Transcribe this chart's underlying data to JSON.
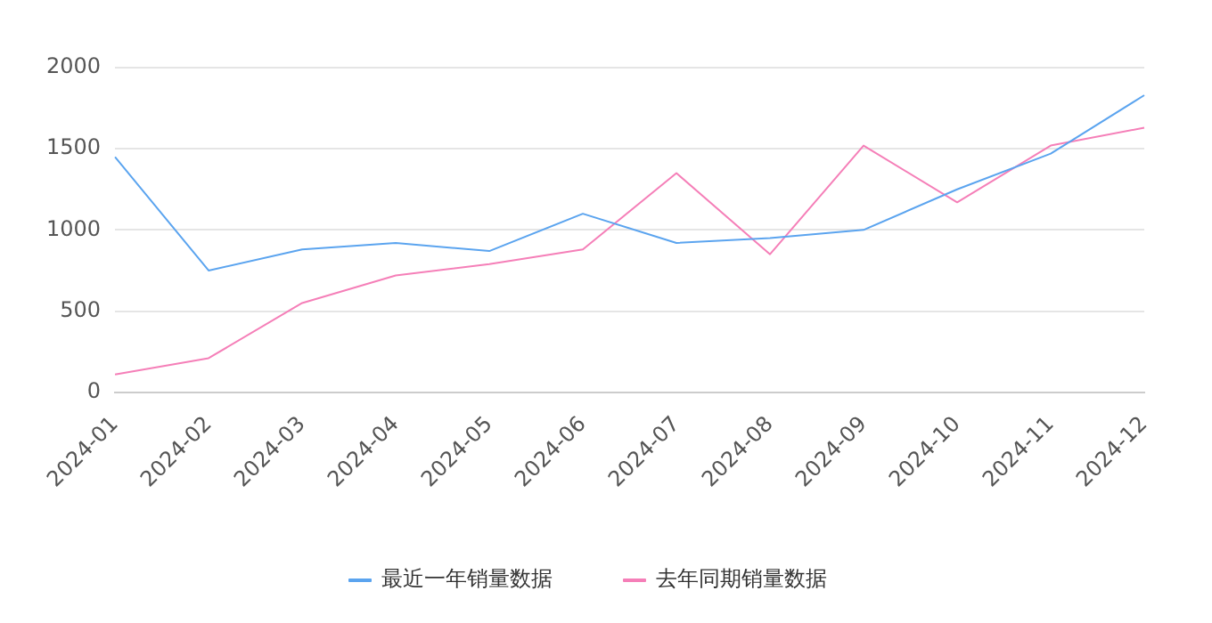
{
  "chart_data": {
    "type": "line",
    "categories": [
      "2024-01",
      "2024-02",
      "2024-03",
      "2024-04",
      "2024-05",
      "2024-06",
      "2024-07",
      "2024-08",
      "2024-09",
      "2024-10",
      "2024-11",
      "2024-12"
    ],
    "series": [
      {
        "name": "最近一年销量数据",
        "color": "#5ba4ef",
        "values": [
          1450,
          750,
          880,
          920,
          870,
          1100,
          920,
          950,
          1000,
          1250,
          1470,
          1830
        ]
      },
      {
        "name": "去年同期销量数据",
        "color": "#f57fb8",
        "values": [
          110,
          210,
          550,
          720,
          790,
          880,
          1350,
          850,
          1520,
          1170,
          1520,
          1630
        ]
      }
    ],
    "ylim": [
      0,
      2000
    ],
    "yticks": [
      0,
      500,
      1000,
      1500,
      2000
    ],
    "grid": "y",
    "legend": "bottom",
    "marker": "none",
    "line_style": "solid"
  }
}
